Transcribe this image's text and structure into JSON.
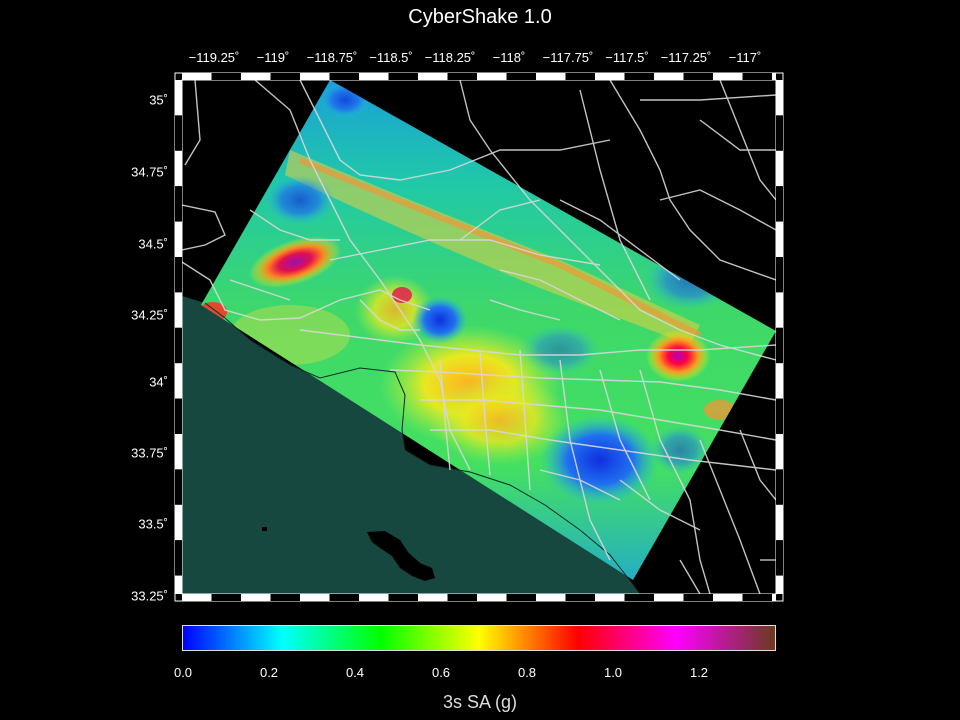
{
  "title": "CyberShake 1.0",
  "longitude_labels": [
    "−119.25˚",
    "−119˚",
    "−118.75˚",
    "−118.5˚",
    "−118.25˚",
    "−118˚",
    "−117.75˚",
    "−117.5˚",
    "−117.25˚",
    "−117˚"
  ],
  "latitude_labels": [
    "35˚",
    "34.75˚",
    "34.5˚",
    "34.25˚",
    "34˚",
    "33.75˚",
    "33.5˚",
    "33.25˚"
  ],
  "colorbar": {
    "ticks": [
      "0.0",
      "0.2",
      "0.4",
      "0.6",
      "0.8",
      "1.0",
      "1.2"
    ],
    "label": "3s SA (g)",
    "range": [
      0,
      1.38
    ],
    "colors": [
      "#0000ff",
      "#00ffff",
      "#00ff00",
      "#ffff00",
      "#ff0000",
      "#ff00ff",
      "#6b3a1f"
    ]
  },
  "colors": {
    "background": "#000000",
    "ocean": "#164840",
    "roads": "#dddddd"
  }
}
